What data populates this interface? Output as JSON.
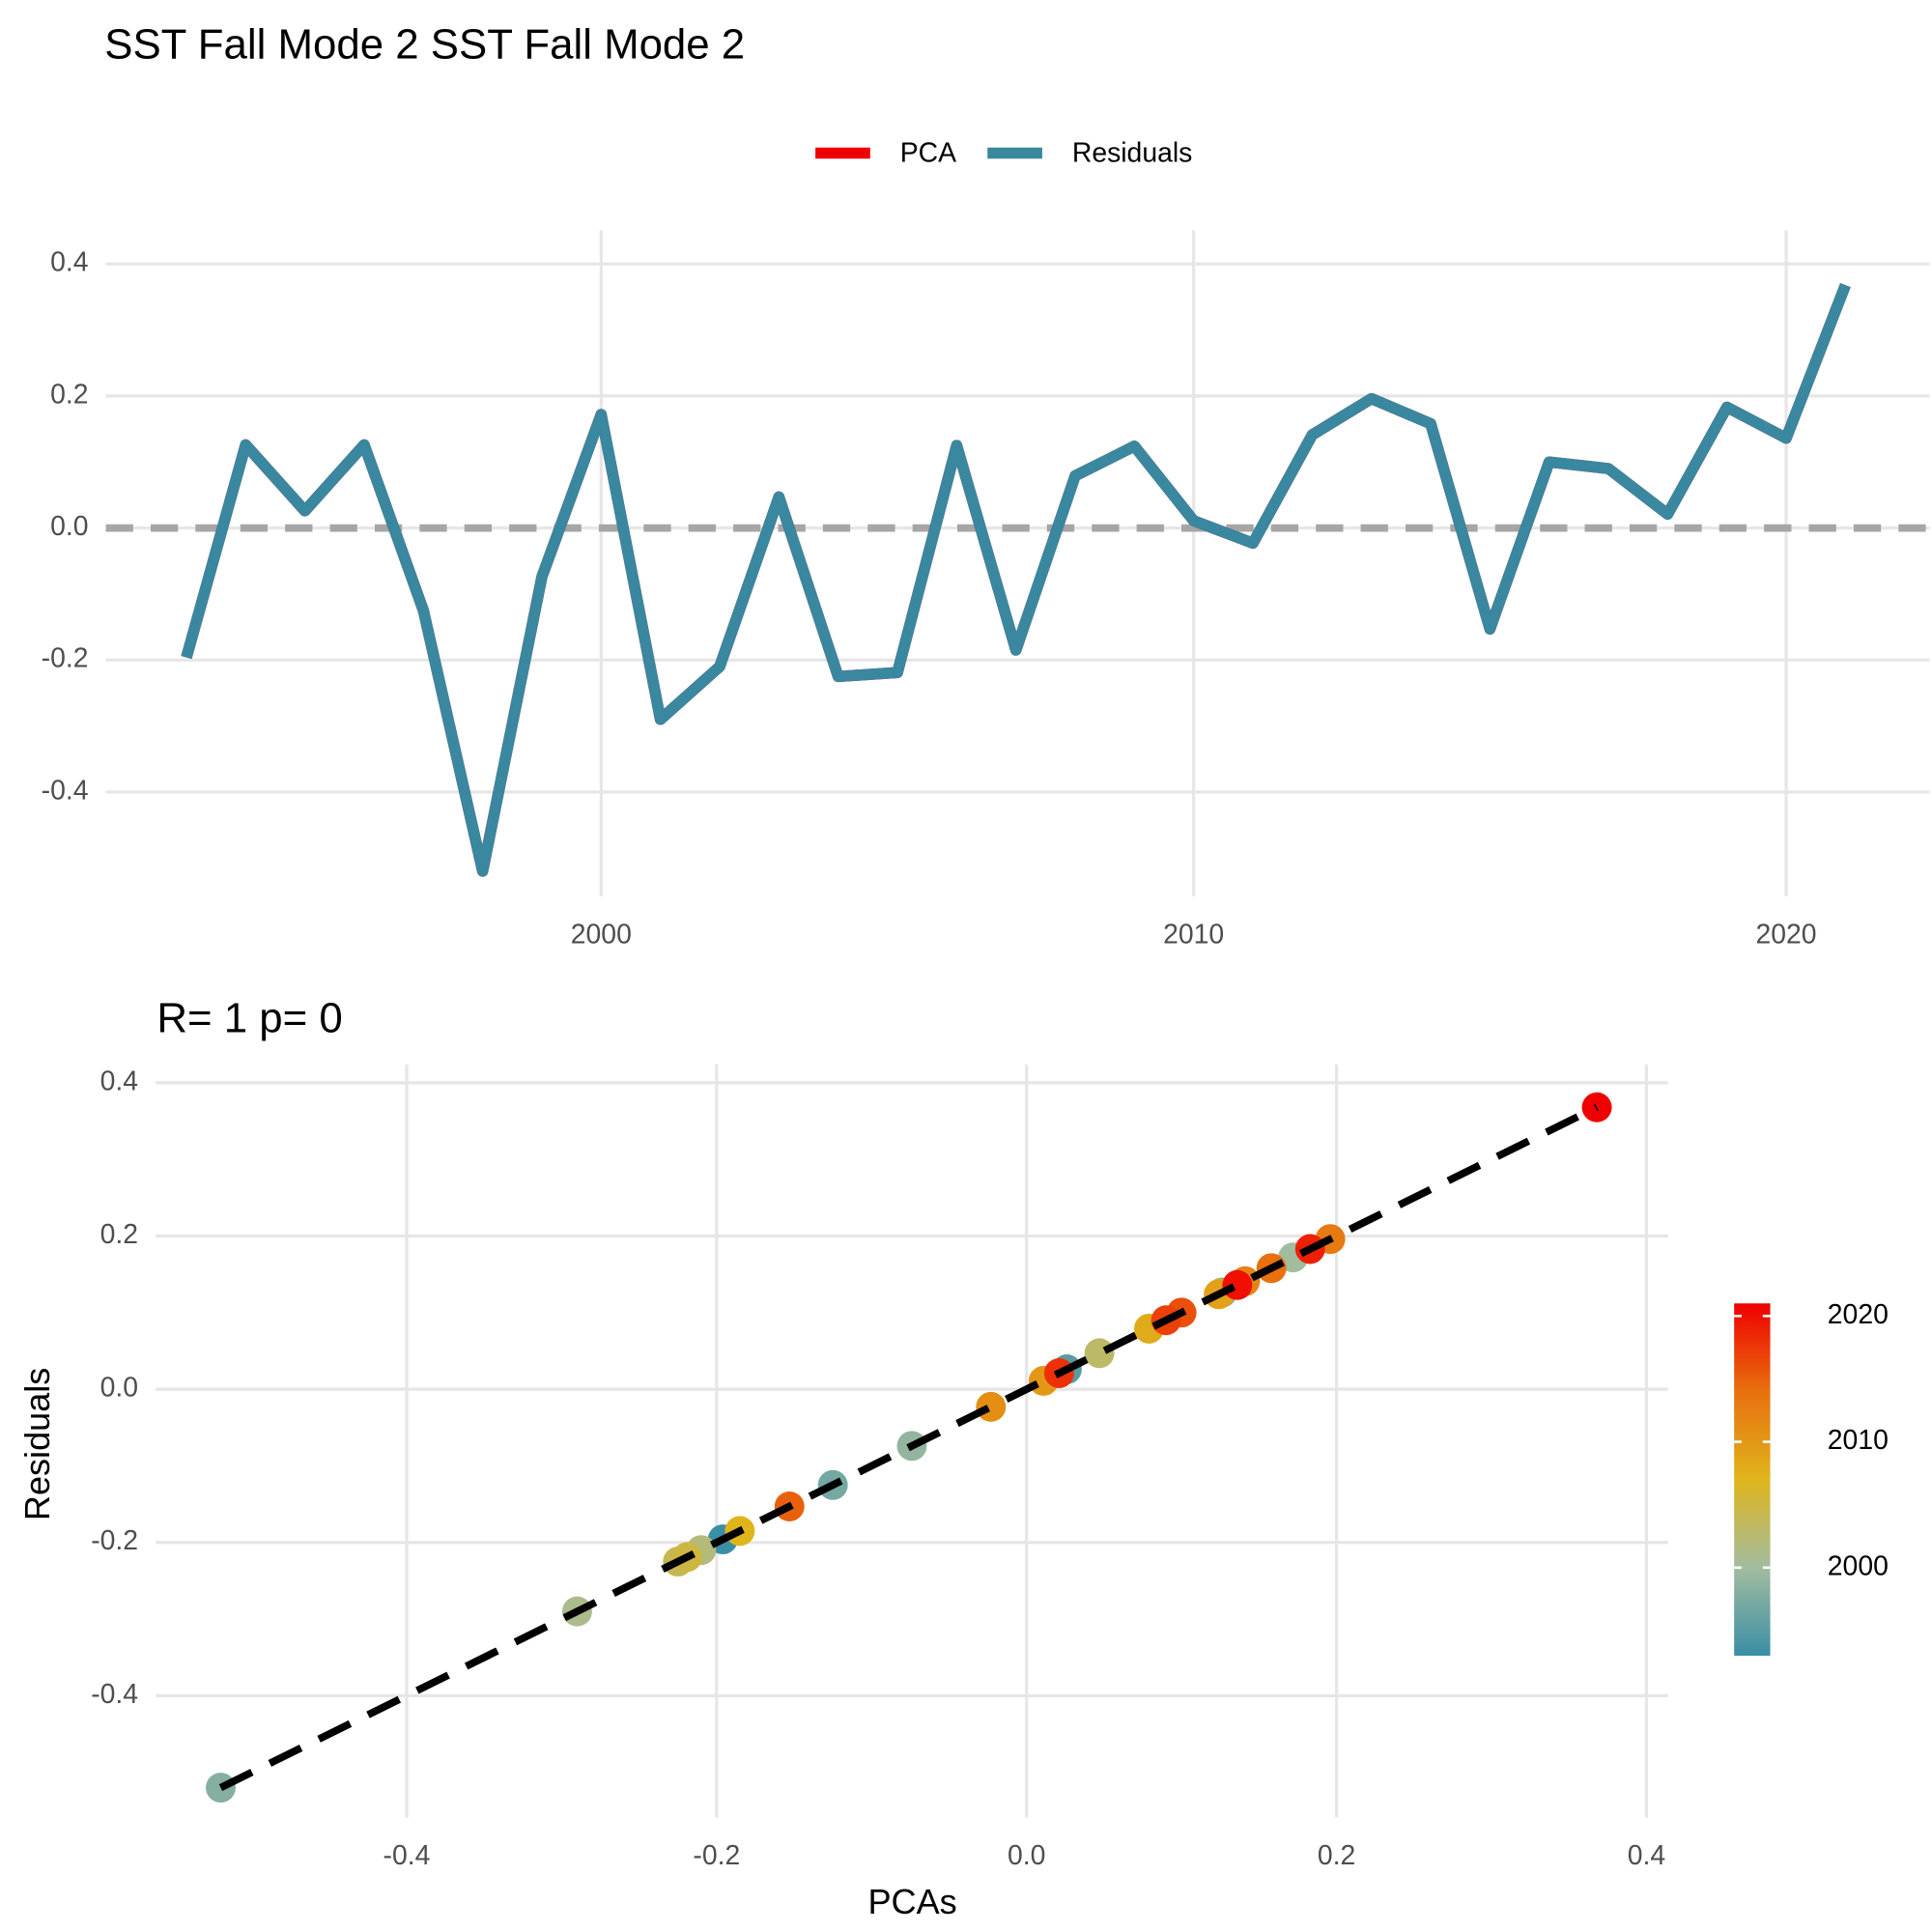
{
  "chart_data": [
    {
      "type": "line",
      "title": "SST Fall Mode 2 SST Fall Mode 2",
      "x": [
        1993,
        1994,
        1995,
        1996,
        1997,
        1998,
        1999,
        2000,
        2001,
        2002,
        2003,
        2004,
        2005,
        2006,
        2007,
        2008,
        2009,
        2010,
        2011,
        2012,
        2013,
        2014,
        2015,
        2016,
        2017,
        2018,
        2019,
        2020,
        2021
      ],
      "series": [
        {
          "name": "PCA",
          "color": "#ee0000",
          "values": [
            -0.196,
            0.126,
            0.026,
            0.126,
            -0.125,
            -0.52,
            -0.074,
            0.172,
            -0.29,
            -0.21,
            0.047,
            -0.225,
            -0.219,
            0.125,
            -0.185,
            0.079,
            0.124,
            0.011,
            -0.023,
            0.141,
            0.196,
            0.158,
            -0.153,
            0.1,
            0.09,
            0.021,
            0.183,
            0.136,
            0.368
          ]
        },
        {
          "name": "Residuals",
          "color": "#3a87a0",
          "values": [
            -0.196,
            0.126,
            0.026,
            0.126,
            -0.125,
            -0.52,
            -0.074,
            0.172,
            -0.29,
            -0.21,
            0.047,
            -0.225,
            -0.219,
            0.125,
            -0.185,
            0.079,
            0.124,
            0.011,
            -0.023,
            0.141,
            0.196,
            0.158,
            -0.153,
            0.1,
            0.09,
            0.021,
            0.183,
            0.136,
            0.368
          ]
        }
      ],
      "xlim": [
        1991.64,
        2022.42
      ],
      "xticks": [
        2000,
        2010,
        2020
      ],
      "ylim": [
        -0.558,
        0.451
      ],
      "yticks": [
        -0.4,
        -0.2,
        {
          "value": 0,
          "label": "0.0"
        },
        0.2,
        0.4
      ],
      "grid": true,
      "legend": "top",
      "reference_line": 0
    },
    {
      "type": "scatter",
      "subtitle": "R= 1  p= 0",
      "xlabel": "PCAs",
      "ylabel": "Residuals",
      "x": [
        -0.196,
        0.126,
        0.026,
        0.126,
        -0.125,
        -0.52,
        -0.074,
        0.172,
        -0.29,
        -0.21,
        0.047,
        -0.225,
        -0.219,
        0.125,
        -0.185,
        0.079,
        0.124,
        0.011,
        -0.023,
        0.141,
        0.196,
        0.158,
        -0.153,
        0.1,
        0.09,
        0.021,
        0.183,
        0.136,
        0.368
      ],
      "y": [
        -0.196,
        0.126,
        0.026,
        0.126,
        -0.125,
        -0.52,
        -0.074,
        0.172,
        -0.29,
        -0.21,
        0.047,
        -0.225,
        -0.219,
        0.125,
        -0.185,
        0.079,
        0.124,
        0.011,
        -0.023,
        0.141,
        0.196,
        0.158,
        -0.153,
        0.1,
        0.09,
        0.021,
        0.183,
        0.136,
        0.368
      ],
      "color_values": [
        1993,
        1994,
        1995,
        1996,
        1997,
        1998,
        1999,
        2000,
        2001,
        2002,
        2003,
        2004,
        2005,
        2006,
        2007,
        2008,
        2009,
        2010,
        2011,
        2012,
        2013,
        2014,
        2015,
        2016,
        2017,
        2018,
        2019,
        2020,
        2021
      ],
      "colorscale": [
        "#3a8ea5",
        "#a2bc9f",
        "#dfb51c",
        "#e8700e",
        "#f00000"
      ],
      "colorbar_lim": [
        1993,
        2021
      ],
      "colorbar_ticks": [
        2000,
        2010,
        2020
      ],
      "xlim": [
        -0.562,
        0.414
      ],
      "xticks": [
        -0.4,
        -0.2,
        {
          "value": 0,
          "label": "0.0"
        },
        0.2,
        0.4
      ],
      "ylim": [
        -0.559,
        0.424
      ],
      "yticks": [
        -0.4,
        -0.2,
        {
          "value": 0,
          "label": "0.0"
        },
        0.2,
        0.4
      ],
      "grid": true,
      "fit_line": true
    }
  ]
}
